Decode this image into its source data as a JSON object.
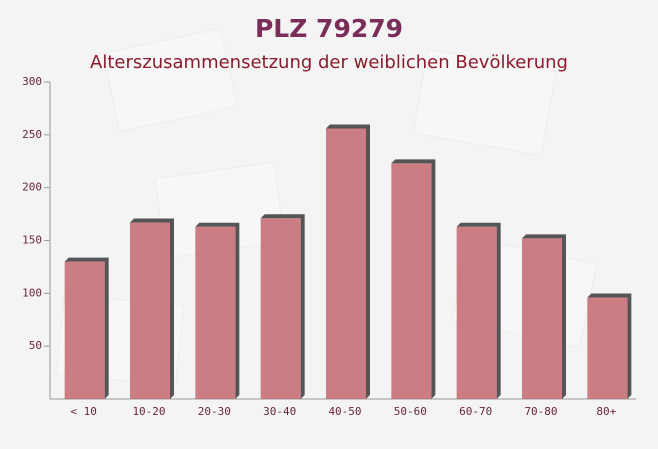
{
  "chart_data": {
    "type": "bar",
    "title": "PLZ 79279",
    "subtitle": "Alterszusammensetzung der weiblichen Bevölkerung",
    "categories": [
      "< 10",
      "10-20",
      "20-30",
      "30-40",
      "40-50",
      "50-60",
      "60-70",
      "70-80",
      "80+"
    ],
    "values": [
      130,
      167,
      163,
      171,
      256,
      223,
      163,
      152,
      96
    ],
    "color": "#c4666f",
    "ylim": [
      0,
      300
    ],
    "yticks": [
      50,
      100,
      150,
      200,
      250,
      300
    ]
  }
}
